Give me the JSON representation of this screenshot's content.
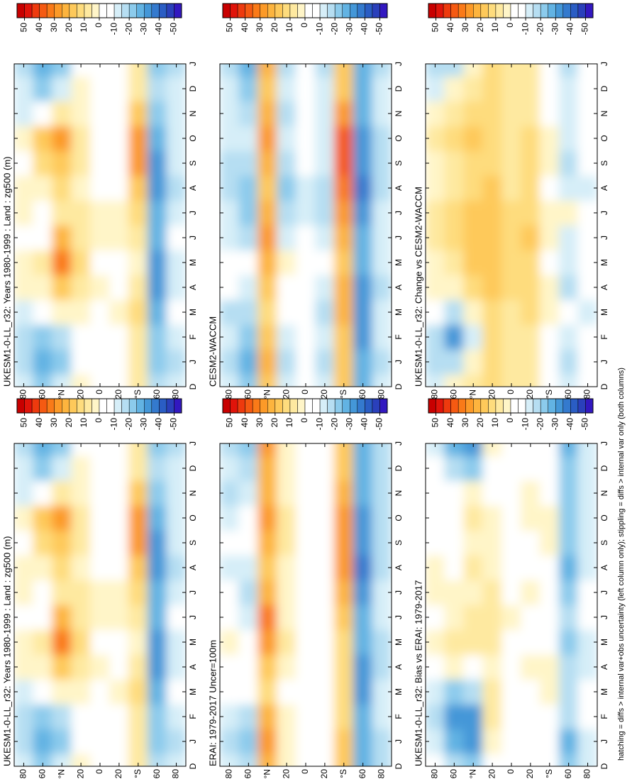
{
  "footnote": "hatching = diffs > internal var+obs uncertainty (left column only); stippling = diffs > internal var only (both columns)",
  "months": [
    "D",
    "J",
    "F",
    "M",
    "A",
    "M",
    "J",
    "J",
    "A",
    "S",
    "O",
    "N",
    "D",
    "J"
  ],
  "lats": [
    80,
    60,
    40,
    20,
    0,
    -20,
    -40,
    -60,
    -80
  ],
  "ylim": [
    90,
    -90
  ],
  "yticks": [
    80,
    60,
    {
      "value": 40,
      "label": "°N"
    },
    20,
    0,
    {
      "value": -20,
      "label": "20"
    },
    {
      "value": -40,
      "label": "°S"
    },
    {
      "value": -60,
      "label": "60"
    },
    {
      "value": -80,
      "label": "80"
    }
  ],
  "colorbar": {
    "clim": [
      55,
      -55
    ],
    "ticks": [
      50,
      40,
      30,
      20,
      10,
      0,
      -10,
      -20,
      -30,
      -40,
      -50
    ],
    "colors": [
      "#c80000",
      "#e0140a",
      "#ee3a0e",
      "#f55a12",
      "#fa7a18",
      "#fc9a28",
      "#fdb43e",
      "#fec95a",
      "#fedc7d",
      "#fee9a0",
      "#fff5c8",
      "#ffffff",
      "#ffffff",
      "#d6eef8",
      "#b6def2",
      "#8ccbec",
      "#62b3e3",
      "#4497d8",
      "#347ace",
      "#2a5dc4",
      "#2a40bb",
      "#3218c0"
    ]
  },
  "chart_data": [
    {
      "type": "contour",
      "title": "UKESM1-0-LL_r32: Years 1980-1999 : Land : zg500 (m)",
      "z": [
        [
          -10,
          -15,
          -15,
          -10,
          5,
          5,
          -5,
          5,
          5,
          -5,
          5,
          -10,
          -10,
          -15
        ],
        [
          -20,
          -25,
          -20,
          -5,
          5,
          10,
          -5,
          -5,
          5,
          15,
          20,
          -5,
          -20,
          -25
        ],
        [
          -10,
          -20,
          -15,
          5,
          20,
          35,
          25,
          10,
          15,
          20,
          30,
          10,
          -10,
          -20
        ],
        [
          5,
          0,
          -5,
          5,
          10,
          15,
          10,
          10,
          5,
          10,
          10,
          5,
          5,
          0
        ],
        [
          0,
          0,
          0,
          0,
          5,
          0,
          5,
          5,
          0,
          0,
          0,
          0,
          0,
          0
        ],
        [
          0,
          0,
          0,
          5,
          0,
          0,
          5,
          5,
          0,
          -5,
          0,
          0,
          0,
          0
        ],
        [
          10,
          10,
          10,
          15,
          10,
          5,
          10,
          15,
          20,
          30,
          30,
          20,
          10,
          10
        ],
        [
          -15,
          -20,
          -20,
          -25,
          -30,
          -30,
          -25,
          -25,
          -30,
          -30,
          -25,
          -20,
          -15,
          -20
        ],
        [
          -10,
          -15,
          -10,
          -5,
          -10,
          -10,
          -5,
          -10,
          -15,
          -10,
          -10,
          -10,
          -10,
          -15
        ]
      ]
    },
    {
      "type": "contour",
      "title": "ERAI: 1979-2017 Uncer=100m",
      "z": [
        [
          -10,
          -15,
          -10,
          -5,
          -5,
          5,
          0,
          -5,
          -10,
          -5,
          -10,
          -15,
          -10,
          -15
        ],
        [
          -15,
          -20,
          -15,
          -5,
          -5,
          0,
          -10,
          -15,
          -10,
          -5,
          -5,
          -10,
          -15,
          -20
        ],
        [
          25,
          30,
          25,
          15,
          20,
          30,
          35,
          25,
          20,
          25,
          30,
          25,
          25,
          30
        ],
        [
          5,
          5,
          5,
          0,
          5,
          10,
          5,
          5,
          5,
          10,
          10,
          5,
          5,
          5
        ],
        [
          0,
          0,
          0,
          0,
          0,
          0,
          0,
          0,
          0,
          0,
          0,
          0,
          0,
          0
        ],
        [
          0,
          0,
          0,
          -5,
          0,
          0,
          0,
          0,
          0,
          0,
          0,
          0,
          0,
          0
        ],
        [
          20,
          20,
          15,
          15,
          15,
          15,
          20,
          25,
          30,
          30,
          30,
          25,
          20,
          20
        ],
        [
          -25,
          -25,
          -25,
          -30,
          -30,
          -25,
          -25,
          -30,
          -35,
          -30,
          -30,
          -25,
          -25,
          -25
        ],
        [
          -15,
          -15,
          -10,
          -10,
          -15,
          -15,
          -10,
          -10,
          -15,
          -15,
          -15,
          -15,
          -15,
          -15
        ]
      ]
    },
    {
      "type": "contour",
      "title": "UKESM1-0-LL_r32: Bias vs ERAI: 1979-2017",
      "z": [
        [
          -5,
          -10,
          -15,
          -10,
          0,
          5,
          0,
          5,
          5,
          0,
          0,
          -5,
          -5,
          -10
        ],
        [
          -15,
          -25,
          -30,
          -20,
          5,
          10,
          5,
          5,
          0,
          0,
          0,
          -5,
          -15,
          -25
        ],
        [
          -20,
          -30,
          -30,
          -15,
          0,
          10,
          10,
          5,
          10,
          5,
          10,
          5,
          -20,
          -30
        ],
        [
          0,
          5,
          10,
          10,
          5,
          10,
          10,
          10,
          5,
          5,
          5,
          0,
          0,
          5
        ],
        [
          0,
          0,
          0,
          0,
          0,
          0,
          5,
          0,
          0,
          0,
          0,
          0,
          0,
          0
        ],
        [
          0,
          0,
          0,
          0,
          5,
          0,
          0,
          5,
          0,
          0,
          5,
          5,
          0,
          0
        ],
        [
          0,
          -5,
          -5,
          5,
          5,
          0,
          0,
          0,
          0,
          5,
          5,
          0,
          0,
          -5
        ],
        [
          -20,
          -25,
          -15,
          -15,
          -15,
          -20,
          -15,
          -20,
          -25,
          -20,
          -20,
          -20,
          -20,
          -25
        ],
        [
          -10,
          -10,
          -5,
          -5,
          -10,
          -10,
          -5,
          -5,
          -10,
          -10,
          -10,
          -10,
          -10,
          -10
        ]
      ]
    },
    {
      "type": "contour",
      "title": "UKESM1-0-LL_r32: Years 1980-1999 : Land : zg500 (m)",
      "z": [
        [
          -10,
          -15,
          -15,
          -10,
          5,
          5,
          -5,
          5,
          5,
          -5,
          5,
          -10,
          -10,
          -15
        ],
        [
          -20,
          -25,
          -20,
          -5,
          5,
          10,
          -5,
          -5,
          5,
          15,
          20,
          -5,
          -20,
          -25
        ],
        [
          -10,
          -20,
          -15,
          5,
          20,
          35,
          25,
          10,
          15,
          20,
          30,
          10,
          -10,
          -20
        ],
        [
          5,
          0,
          -5,
          5,
          10,
          15,
          10,
          10,
          5,
          10,
          10,
          5,
          5,
          0
        ],
        [
          0,
          0,
          0,
          0,
          5,
          0,
          5,
          5,
          0,
          0,
          0,
          0,
          0,
          0
        ],
        [
          0,
          0,
          0,
          5,
          0,
          0,
          5,
          5,
          0,
          -5,
          0,
          0,
          0,
          0
        ],
        [
          10,
          10,
          10,
          15,
          10,
          5,
          10,
          15,
          20,
          30,
          30,
          20,
          10,
          10
        ],
        [
          -15,
          -20,
          -20,
          -25,
          -30,
          -30,
          -25,
          -25,
          -30,
          -30,
          -25,
          -20,
          -15,
          -20
        ],
        [
          -10,
          -15,
          -10,
          -5,
          -10,
          -10,
          -5,
          -10,
          -15,
          -10,
          -10,
          -10,
          -10,
          -15
        ]
      ]
    },
    {
      "type": "contour",
      "title": "CESM2-WACCM",
      "z": [
        [
          -10,
          -15,
          -10,
          -15,
          -5,
          -5,
          -10,
          -10,
          -15,
          -15,
          -10,
          -10,
          -10,
          -15
        ],
        [
          -20,
          -25,
          -20,
          -15,
          -10,
          -5,
          -15,
          -20,
          -20,
          -15,
          -10,
          -15,
          -20,
          -25
        ],
        [
          20,
          25,
          20,
          15,
          20,
          25,
          30,
          25,
          20,
          25,
          30,
          25,
          20,
          25
        ],
        [
          -10,
          -15,
          -10,
          -5,
          0,
          5,
          -10,
          -15,
          -20,
          -15,
          -10,
          -15,
          -10,
          -15
        ],
        [
          -5,
          -5,
          0,
          -5,
          0,
          0,
          -5,
          -10,
          -10,
          -5,
          -5,
          -5,
          -5,
          -5
        ],
        [
          -10,
          -15,
          -10,
          -15,
          -10,
          -5,
          -10,
          -15,
          -15,
          -10,
          -10,
          -10,
          -10,
          -15
        ],
        [
          20,
          20,
          20,
          25,
          25,
          20,
          25,
          30,
          35,
          40,
          40,
          30,
          20,
          20
        ],
        [
          -25,
          -25,
          -30,
          -30,
          -30,
          -25,
          -25,
          -30,
          -35,
          -30,
          -30,
          -25,
          -25,
          -25
        ],
        [
          -10,
          -15,
          -10,
          -10,
          -15,
          -10,
          -10,
          -10,
          -15,
          -15,
          -15,
          -10,
          -10,
          -15
        ]
      ]
    },
    {
      "type": "contour",
      "title": "UKESM1-0-LL_r32: Change vs CESM2-WACCM",
      "z": [
        [
          -10,
          -15,
          -15,
          -5,
          5,
          5,
          10,
          10,
          5,
          5,
          10,
          5,
          -10,
          -15
        ],
        [
          5,
          -15,
          -30,
          -15,
          5,
          10,
          15,
          15,
          10,
          10,
          15,
          10,
          5,
          -15
        ],
        [
          10,
          5,
          -10,
          5,
          15,
          20,
          20,
          20,
          15,
          15,
          20,
          15,
          10,
          5
        ],
        [
          15,
          15,
          15,
          15,
          20,
          20,
          20,
          20,
          20,
          15,
          15,
          15,
          15,
          15
        ],
        [
          10,
          10,
          10,
          10,
          15,
          15,
          15,
          15,
          10,
          10,
          10,
          10,
          10,
          10
        ],
        [
          10,
          10,
          10,
          15,
          15,
          15,
          20,
          15,
          15,
          15,
          15,
          10,
          10,
          10
        ],
        [
          -5,
          -5,
          0,
          5,
          5,
          0,
          5,
          5,
          0,
          5,
          5,
          0,
          -5,
          -5
        ],
        [
          -10,
          -15,
          -10,
          -5,
          -15,
          -10,
          -10,
          5,
          -10,
          -15,
          -10,
          -10,
          -10,
          -15
        ],
        [
          -5,
          -5,
          -5,
          -10,
          -5,
          -5,
          0,
          -5,
          -10,
          -5,
          -5,
          -5,
          -5,
          -5
        ]
      ]
    }
  ]
}
